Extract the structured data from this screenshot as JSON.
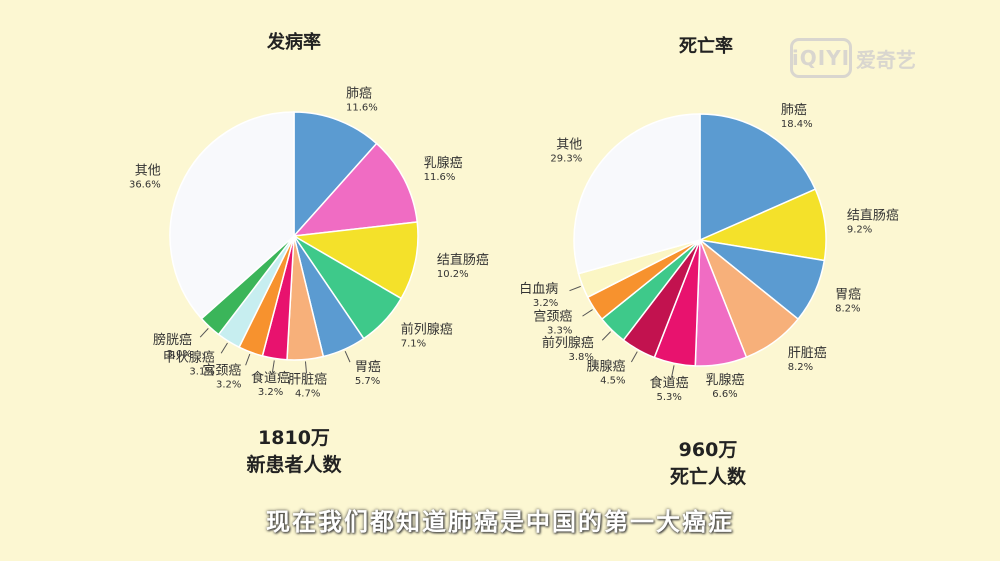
{
  "chart_data": [
    {
      "type": "pie",
      "title": "发病率",
      "caption_line1": "1810万",
      "caption_line2": "新患者人数",
      "slices": [
        {
          "label": "肺癌",
          "value": 11.6,
          "value_text": "11.6%",
          "color": "#5b9bd1"
        },
        {
          "label": "乳腺癌",
          "value": 11.6,
          "value_text": "11.6%",
          "color": "#f06cc3"
        },
        {
          "label": "结直肠癌",
          "value": 10.2,
          "value_text": "10.2%",
          "color": "#f4e12a"
        },
        {
          "label": "前列腺癌",
          "value": 7.1,
          "value_text": "7.1%",
          "color": "#3ec98a"
        },
        {
          "label": "胃癌",
          "value": 5.7,
          "value_text": "5.7%",
          "color": "#5b9bd1"
        },
        {
          "label": "肝脏癌",
          "value": 4.7,
          "value_text": "4.7%",
          "color": "#f7b07a"
        },
        {
          "label": "食道癌",
          "value": 3.2,
          "value_text": "3.2%",
          "color": "#e8126e"
        },
        {
          "label": "宫颈癌",
          "value": 3.2,
          "value_text": "3.2%",
          "color": "#f7922e"
        },
        {
          "label": "甲状腺癌",
          "value": 3.1,
          "value_text": "3.1%",
          "color": "#c7eef0"
        },
        {
          "label": "膀胱癌",
          "value": 3.0,
          "value_text": "3.0%",
          "color": "#3bb55a"
        },
        {
          "label": "其他",
          "value": 36.6,
          "value_text": "36.6%",
          "color": "#f8f9fc"
        }
      ]
    },
    {
      "type": "pie",
      "title": "死亡率",
      "caption_line1": "960万",
      "caption_line2": "死亡人数",
      "slices": [
        {
          "label": "肺癌",
          "value": 18.4,
          "value_text": "18.4%",
          "color": "#5b9bd1"
        },
        {
          "label": "结直肠癌",
          "value": 9.2,
          "value_text": "9.2%",
          "color": "#f4e12a"
        },
        {
          "label": "胃癌",
          "value": 8.2,
          "value_text": "8.2%",
          "color": "#5b9bd1"
        },
        {
          "label": "肝脏癌",
          "value": 8.2,
          "value_text": "8.2%",
          "color": "#f7b07a"
        },
        {
          "label": "乳腺癌",
          "value": 6.6,
          "value_text": "6.6%",
          "color": "#f06cc3"
        },
        {
          "label": "食道癌",
          "value": 5.3,
          "value_text": "5.3%",
          "color": "#e8126e"
        },
        {
          "label": "胰腺癌",
          "value": 4.5,
          "value_text": "4.5%",
          "color": "#c2124f"
        },
        {
          "label": "前列腺癌",
          "value": 3.8,
          "value_text": "3.8%",
          "color": "#3ec98a"
        },
        {
          "label": "宫颈癌",
          "value": 3.3,
          "value_text": "3.3%",
          "color": "#f7922e"
        },
        {
          "label": "白血病",
          "value": 3.2,
          "value_text": "3.2%",
          "color": "#fbf6c4"
        },
        {
          "label": "其他",
          "value": 29.3,
          "value_text": "29.3%",
          "color": "#f8f9fc"
        }
      ]
    }
  ],
  "subtitle": "现在我们都知道肺癌是中国的第一大癌症",
  "logo": {
    "mark": "iQIYI",
    "text": "爱奇艺"
  }
}
